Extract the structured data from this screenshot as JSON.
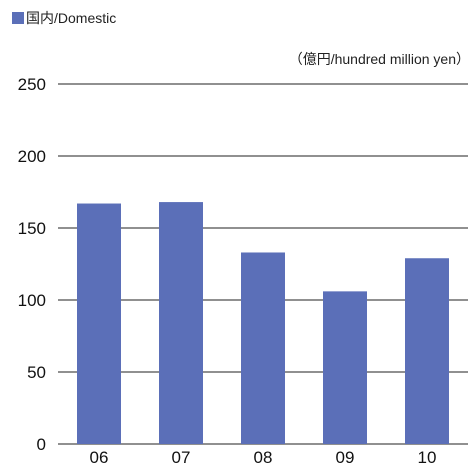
{
  "chart_data": {
    "type": "bar",
    "legend": {
      "position": "top-left",
      "items": [
        {
          "label": "国内/Domestic",
          "color": "#5b6fb8"
        }
      ]
    },
    "unit_label": "（億円/hundred million yen）",
    "categories": [
      "06",
      "07",
      "08",
      "09",
      "10"
    ],
    "series": [
      {
        "name": "国内/Domestic",
        "color": "#5b6fb8",
        "values": [
          167,
          168,
          133,
          106,
          129
        ]
      }
    ],
    "ylim": [
      0,
      250
    ],
    "y_ticks": [
      0,
      50,
      100,
      150,
      200,
      250
    ],
    "grid": true
  }
}
